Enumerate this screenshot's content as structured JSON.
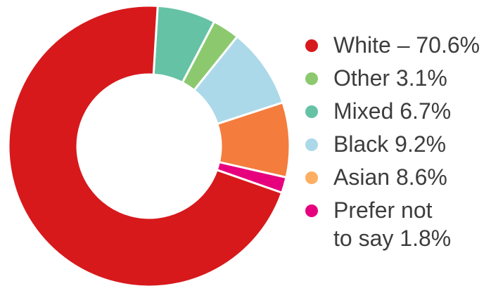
{
  "chart_data": {
    "type": "pie",
    "donut": true,
    "legend_position": "right",
    "slices": [
      {
        "label": "White – 70.6%",
        "value": 70.6,
        "color": "#d7191c"
      },
      {
        "label": "Other 3.1%",
        "value": 3.1,
        "color": "#8cc96e"
      },
      {
        "label": "Mixed 6.7%",
        "value": 6.7,
        "color": "#66c2a5"
      },
      {
        "label": "Black 9.2%",
        "value": 9.2,
        "color": "#abd9e9"
      },
      {
        "label": "Asian 8.6%",
        "value": 8.6,
        "color": "#f47c3c"
      },
      {
        "label": "Prefer not\nto say 1.8%",
        "value": 1.8,
        "color": "#e6007e"
      }
    ],
    "draw_order": [
      "Mixed 6.7%",
      "Other 3.1%",
      "Black 9.2%",
      "Asian 8.6%",
      "Prefer not\nto say 1.8%",
      "White – 70.6%"
    ],
    "legend_colors": [
      "#d7191c",
      "#8cc96e",
      "#66c2a5",
      "#abd9e9",
      "#fdae61",
      "#e6007e"
    ]
  }
}
